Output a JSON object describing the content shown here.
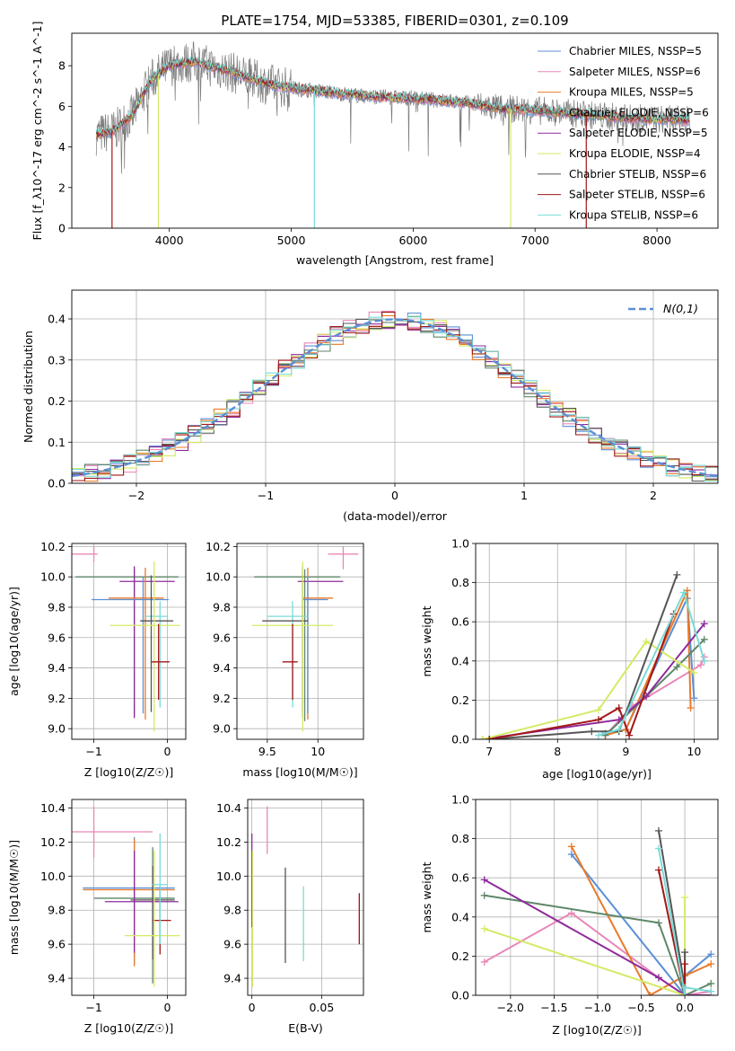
{
  "figure_title": "PLATE=1754, MJD=53385, FIBERID=0301, z=0.109",
  "colors": {
    "chabrier_miles": "#5b8fd6",
    "salpeter_miles": "#e988b8",
    "kroupa_miles": "#ea7a27",
    "chabrier_elodie": "#5e8768",
    "salpeter_elodie": "#8e2b9b",
    "kroupa_elodie": "#d4ea66",
    "chabrier_stelib": "#555555",
    "salpeter_stelib": "#a31616",
    "kroupa_stelib": "#79dbd6",
    "normal": "#5b8fd6",
    "grid": "#b0b0b0"
  },
  "chart_data": [
    {
      "id": "spectrum",
      "type": "line",
      "xlabel": "wavelength [Angstrom, rest frame]",
      "ylabel": "Flux [f_λ10^-17 erg cm^-2 s^-1 A^-1]",
      "xlim": [
        3200,
        8500
      ],
      "ylim": [
        0,
        9.6
      ],
      "xticks": [
        4000,
        5000,
        6000,
        7000,
        8000
      ],
      "yticks": [
        0,
        2,
        4,
        6,
        8
      ],
      "grid": false,
      "legend_position": "right",
      "continuum": {
        "x": [
          3400,
          3550,
          3700,
          3850,
          4000,
          4200,
          4500,
          4800,
          5000,
          5300,
          5600,
          6000,
          6400,
          6700,
          7000,
          7400,
          7800,
          8100,
          8270
        ],
        "y": [
          4.6,
          4.8,
          5.6,
          7.3,
          8.0,
          8.2,
          7.7,
          7.1,
          6.9,
          6.7,
          6.5,
          6.4,
          6.2,
          5.9,
          5.8,
          5.6,
          5.4,
          5.35,
          5.3
        ]
      },
      "legend": [
        {
          "name": "Chabrier MILES, N_SSP=5",
          "color_key": "chabrier_miles"
        },
        {
          "name": "Salpeter MILES, N_SSP=6",
          "color_key": "salpeter_miles"
        },
        {
          "name": "Kroupa MILES, N_SSP=5",
          "color_key": "kroupa_miles"
        },
        {
          "name": "Chabrier ELODIE, N_SSP=6",
          "color_key": "chabrier_elodie"
        },
        {
          "name": "Salpeter ELODIE, N_SSP=5",
          "color_key": "salpeter_elodie"
        },
        {
          "name": "Kroupa ELODIE, N_SSP=4",
          "color_key": "kroupa_elodie"
        },
        {
          "name": "Chabrier STELIB, N_SSP=6",
          "color_key": "chabrier_stelib"
        },
        {
          "name": "Salpeter STELIB, N_SSP=6",
          "color_key": "salpeter_stelib"
        },
        {
          "name": "Kroupa STELIB, N_SSP=6",
          "color_key": "kroupa_stelib"
        }
      ],
      "spikes": [
        {
          "x": 3530,
          "color_key": "salpeter_stelib"
        },
        {
          "x": 3910,
          "color_key": "kroupa_elodie"
        },
        {
          "x": 5190,
          "color_key": "kroupa_stelib"
        },
        {
          "x": 6800,
          "color_key": "kroupa_elodie"
        },
        {
          "x": 7420,
          "color_key": "salpeter_stelib"
        }
      ]
    },
    {
      "id": "residuals",
      "type": "step",
      "xlabel": "(data-model)/error",
      "ylabel": "Normed distribution",
      "xlim": [
        -2.5,
        2.5
      ],
      "ylim": [
        0,
        0.47
      ],
      "xticks": [
        -2,
        -1,
        0,
        1,
        2
      ],
      "yticks": [
        0.0,
        0.1,
        0.2,
        0.3,
        0.4
      ],
      "grid": true,
      "legend_position": "top-right",
      "normal_legend": "N(0,1)",
      "bin_width": 0.1
    },
    {
      "id": "age_vs_Z",
      "type": "errorbar",
      "xlabel": "Z [log10(Z/Z☉)]",
      "ylabel": "age  [log10(age/yr)]",
      "xlim": [
        -1.3,
        0.25
      ],
      "ylim": [
        8.93,
        10.22
      ],
      "xticks": [
        -1,
        0
      ],
      "yticks": [
        9.0,
        9.2,
        9.4,
        9.6,
        9.8,
        10.0,
        10.2
      ],
      "series": [
        {
          "color_key": "salpeter_miles",
          "x": -1.0,
          "xerr": [
            0.95,
            0.05
          ],
          "y": 10.15,
          "yerr": [
            0.05,
            0.05
          ]
        },
        {
          "color_key": "chabrier_elodie",
          "x": -0.45,
          "xerr": [
            0.8,
            0.6
          ],
          "y": 10.0,
          "yerr": [
            0.92,
            0.05
          ]
        },
        {
          "color_key": "salpeter_elodie",
          "x": -0.45,
          "xerr": [
            0.2,
            0.55
          ],
          "y": 9.97,
          "yerr": [
            0.9,
            0.1
          ]
        },
        {
          "color_key": "kroupa_miles",
          "x": -0.3,
          "xerr": [
            0.5,
            0.25
          ],
          "y": 9.86,
          "yerr": [
            0.8,
            0.2
          ]
        },
        {
          "color_key": "chabrier_miles",
          "x": -0.33,
          "xerr": [
            0.7,
            0.35
          ],
          "y": 9.85,
          "yerr": [
            0.75,
            0.15
          ]
        },
        {
          "color_key": "kroupa_stelib",
          "x": -0.1,
          "xerr": [
            0.2,
            0.1
          ],
          "y": 9.74,
          "yerr": [
            0.6,
            0.1
          ]
        },
        {
          "color_key": "chabrier_stelib",
          "x": -0.22,
          "xerr": [
            0.15,
            0.3
          ],
          "y": 9.71,
          "yerr": [
            0.6,
            0.3
          ]
        },
        {
          "color_key": "kroupa_elodie",
          "x": -0.18,
          "xerr": [
            0.6,
            0.35
          ],
          "y": 9.68,
          "yerr": [
            0.7,
            0.42
          ]
        },
        {
          "color_key": "salpeter_stelib",
          "x": -0.12,
          "xerr": [
            0.1,
            0.15
          ],
          "y": 9.44,
          "yerr": [
            0.25,
            0.25
          ]
        }
      ]
    },
    {
      "id": "age_vs_mass",
      "type": "errorbar",
      "xlabel": "mass [log10(M/M☉)]",
      "ylabel": "",
      "xlim": [
        9.2,
        10.45
      ],
      "ylim": [
        8.93,
        10.22
      ],
      "xticks": [
        9.5,
        10.0
      ],
      "yticks": [
        9.0,
        9.2,
        9.4,
        9.6,
        9.8,
        10.0,
        10.2
      ],
      "series": [
        {
          "color_key": "salpeter_miles",
          "x": 10.25,
          "xerr": [
            0.15,
            0.15
          ],
          "y": 10.15,
          "yerr": [
            0.1,
            0.05
          ]
        },
        {
          "color_key": "chabrier_elodie",
          "x": 9.87,
          "xerr": [
            0.5,
            0.35
          ],
          "y": 10.0,
          "yerr": [
            0.95,
            0.05
          ]
        },
        {
          "color_key": "salpeter_elodie",
          "x": 9.85,
          "xerr": [
            0.05,
            0.4
          ],
          "y": 9.97,
          "yerr": [
            0.9,
            0.1
          ]
        },
        {
          "color_key": "kroupa_miles",
          "x": 9.9,
          "xerr": [
            0.05,
            0.25
          ],
          "y": 9.86,
          "yerr": [
            0.8,
            0.2
          ]
        },
        {
          "color_key": "chabrier_miles",
          "x": 9.9,
          "xerr": [
            0.05,
            0.2
          ],
          "y": 9.85,
          "yerr": [
            0.75,
            0.15
          ]
        },
        {
          "color_key": "kroupa_stelib",
          "x": 9.75,
          "xerr": [
            0.25,
            0.15
          ],
          "y": 9.74,
          "yerr": [
            0.6,
            0.1
          ]
        },
        {
          "color_key": "chabrier_stelib",
          "x": 9.85,
          "xerr": [
            0.4,
            0.05
          ],
          "y": 9.71,
          "yerr": [
            0.6,
            0.3
          ]
        },
        {
          "color_key": "kroupa_elodie",
          "x": 9.85,
          "xerr": [
            0.5,
            0.3
          ],
          "y": 9.68,
          "yerr": [
            0.7,
            0.42
          ]
        },
        {
          "color_key": "salpeter_stelib",
          "x": 9.75,
          "xerr": [
            0.1,
            0.05
          ],
          "y": 9.44,
          "yerr": [
            0.25,
            0.25
          ]
        }
      ]
    },
    {
      "id": "weight_vs_age",
      "type": "line",
      "xlabel": "age  [log10(age/yr)]",
      "ylabel": "mass weight",
      "xlim": [
        6.8,
        10.35
      ],
      "ylim": [
        0,
        1.0
      ],
      "xticks": [
        7,
        8,
        9,
        10
      ],
      "yticks": [
        0.0,
        0.2,
        0.4,
        0.6,
        0.8,
        1.0
      ],
      "series": [
        {
          "color_key": "chabrier_miles",
          "x": [
            8.7,
            9.0,
            9.9,
            10.0
          ],
          "y": [
            0.03,
            0.05,
            0.72,
            0.21
          ]
        },
        {
          "color_key": "salpeter_miles",
          "x": [
            8.7,
            9.1,
            10.1,
            10.15
          ],
          "y": [
            0.02,
            0.17,
            0.38,
            0.42
          ]
        },
        {
          "color_key": "kroupa_miles",
          "x": [
            8.7,
            9.0,
            9.9,
            9.95
          ],
          "y": [
            0.02,
            0.05,
            0.76,
            0.16
          ]
        },
        {
          "color_key": "chabrier_elodie",
          "x": [
            8.7,
            9.75,
            10.15
          ],
          "y": [
            0.02,
            0.37,
            0.51
          ]
        },
        {
          "color_key": "salpeter_elodie",
          "x": [
            6.9,
            8.9,
            9.3,
            10.15
          ],
          "y": [
            0.0,
            0.1,
            0.22,
            0.59
          ]
        },
        {
          "color_key": "kroupa_elodie",
          "x": [
            6.9,
            8.6,
            9.3,
            10.0
          ],
          "y": [
            0.0,
            0.15,
            0.5,
            0.34
          ]
        },
        {
          "color_key": "chabrier_stelib",
          "x": [
            7.0,
            8.5,
            8.9,
            9.75
          ],
          "y": [
            0.0,
            0.04,
            0.04,
            0.84
          ]
        },
        {
          "color_key": "salpeter_stelib",
          "x": [
            7.0,
            8.6,
            8.9,
            9.05,
            9.7
          ],
          "y": [
            0.0,
            0.1,
            0.16,
            0.02,
            0.64
          ]
        },
        {
          "color_key": "kroupa_stelib",
          "x": [
            8.6,
            8.9,
            9.85,
            10.15
          ],
          "y": [
            0.02,
            0.05,
            0.75,
            0.4
          ]
        }
      ]
    },
    {
      "id": "mass_vs_Z",
      "type": "errorbar",
      "xlabel": "Z [log10(Z/Z☉)]",
      "ylabel": "mass [log10(M/M☉)]",
      "xlim": [
        -1.3,
        0.25
      ],
      "ylim": [
        9.3,
        10.45
      ],
      "xticks": [
        -1,
        0
      ],
      "yticks": [
        9.4,
        9.6,
        9.8,
        10.0,
        10.2,
        10.4
      ],
      "series": [
        {
          "color_key": "salpeter_miles",
          "x": -1.0,
          "xerr": [
            0.3,
            0.8
          ],
          "y": 10.26,
          "yerr": [
            0.15,
            0.15
          ]
        },
        {
          "color_key": "chabrier_miles",
          "x": -0.45,
          "xerr": [
            0.7,
            0.55
          ],
          "y": 9.93,
          "yerr": [
            0.45,
            0.3
          ]
        },
        {
          "color_key": "kroupa_miles",
          "x": -0.45,
          "xerr": [
            0.7,
            0.55
          ],
          "y": 9.92,
          "yerr": [
            0.45,
            0.3
          ]
        },
        {
          "color_key": "chabrier_elodie",
          "x": -0.2,
          "xerr": [
            0.8,
            0.3
          ],
          "y": 9.87,
          "yerr": [
            0.5,
            0.3
          ]
        },
        {
          "color_key": "chabrier_stelib",
          "x": -0.2,
          "xerr": [
            0.3,
            0.3
          ],
          "y": 9.86,
          "yerr": [
            0.35,
            0.2
          ]
        },
        {
          "color_key": "salpeter_elodie",
          "x": -0.45,
          "xerr": [
            0.4,
            0.6
          ],
          "y": 9.85,
          "yerr": [
            0.3,
            0.3
          ]
        },
        {
          "color_key": "salpeter_stelib",
          "x": -0.1,
          "xerr": [
            0.1,
            0.15
          ],
          "y": 9.74,
          "yerr": [
            0.2,
            0.2
          ]
        },
        {
          "color_key": "kroupa_elodie",
          "x": -0.18,
          "xerr": [
            0.4,
            0.35
          ],
          "y": 9.65,
          "yerr": [
            0.3,
            0.5
          ]
        },
        {
          "color_key": "kroupa_stelib",
          "x": -0.1,
          "xerr": [
            0.1,
            0.1
          ],
          "y": 9.95,
          "yerr": [
            0.35,
            0.3
          ]
        }
      ]
    },
    {
      "id": "mass_vs_ebv",
      "type": "errorbar",
      "xlabel": "E(B-V)",
      "ylabel": "",
      "xlim": [
        -0.003,
        0.08
      ],
      "ylim": [
        9.3,
        10.45
      ],
      "xticks": [
        0.0,
        0.05
      ],
      "yticks": [
        9.4,
        9.6,
        9.8,
        10.0,
        10.2,
        10.4
      ],
      "series": [
        {
          "color_key": "salpeter_miles",
          "x": 0.011,
          "y": 10.28,
          "yerr": [
            0.15,
            0.13
          ]
        },
        {
          "color_key": "salpeter_elodie",
          "x": 0.0,
          "y": 10.15,
          "yerr": [
            0.45,
            0.1
          ]
        },
        {
          "color_key": "kroupa_elodie",
          "x": 0.0005,
          "y": 9.7,
          "yerr": [
            0.35,
            0.45
          ]
        },
        {
          "color_key": "chabrier_stelib",
          "x": 0.024,
          "y": 9.77,
          "yerr": [
            0.28,
            0.28
          ]
        },
        {
          "color_key": "kroupa_stelib",
          "x": 0.037,
          "y": 9.72,
          "yerr": [
            0.22,
            0.22
          ]
        },
        {
          "color_key": "salpeter_stelib",
          "x": 0.077,
          "y": 9.75,
          "yerr": [
            0.15,
            0.15
          ]
        }
      ]
    },
    {
      "id": "weight_vs_Z",
      "type": "line",
      "xlabel": "Z [log10(Z/Z☉)]",
      "ylabel": "mass weight",
      "xlim": [
        -2.4,
        0.38
      ],
      "ylim": [
        0,
        1.0
      ],
      "xticks": [
        -2.0,
        -1.5,
        -1.0,
        -0.5,
        0.0
      ],
      "yticks": [
        0.0,
        0.2,
        0.4,
        0.6,
        0.8,
        1.0
      ],
      "series": [
        {
          "color_key": "chabrier_miles",
          "x": [
            -1.3,
            0.0,
            0.0,
            0.3
          ],
          "y": [
            0.72,
            0.0,
            0.1,
            0.21
          ]
        },
        {
          "color_key": "salpeter_miles",
          "x": [
            -2.3,
            -1.3,
            -0.3,
            0.0,
            0.3
          ],
          "y": [
            0.17,
            0.42,
            0.09,
            0.0,
            0.02
          ]
        },
        {
          "color_key": "kroupa_miles",
          "x": [
            -1.3,
            -0.4,
            0.0,
            0.3
          ],
          "y": [
            0.76,
            0.0,
            0.1,
            0.16
          ]
        },
        {
          "color_key": "chabrier_elodie",
          "x": [
            -2.3,
            -0.3,
            0.0,
            0.3
          ],
          "y": [
            0.51,
            0.37,
            0.0,
            0.06
          ]
        },
        {
          "color_key": "salpeter_elodie",
          "x": [
            -2.3,
            -0.3,
            0.0,
            0.3
          ],
          "y": [
            0.59,
            0.09,
            0.0,
            0.0
          ]
        },
        {
          "color_key": "kroupa_elodie",
          "x": [
            -2.3,
            0.0,
            0.0
          ],
          "y": [
            0.34,
            0.0,
            0.5
          ]
        },
        {
          "color_key": "chabrier_stelib",
          "x": [
            -0.3,
            0.0,
            0.0,
            0.0
          ],
          "y": [
            0.84,
            0.04,
            0.22,
            0.04
          ]
        },
        {
          "color_key": "salpeter_stelib",
          "x": [
            -0.3,
            0.0,
            0.0
          ],
          "y": [
            0.64,
            0.0,
            0.16
          ]
        },
        {
          "color_key": "kroupa_stelib",
          "x": [
            -0.3,
            0.0,
            0.0,
            0.3
          ],
          "y": [
            0.75,
            0.0,
            0.04,
            0.02
          ]
        }
      ]
    }
  ]
}
